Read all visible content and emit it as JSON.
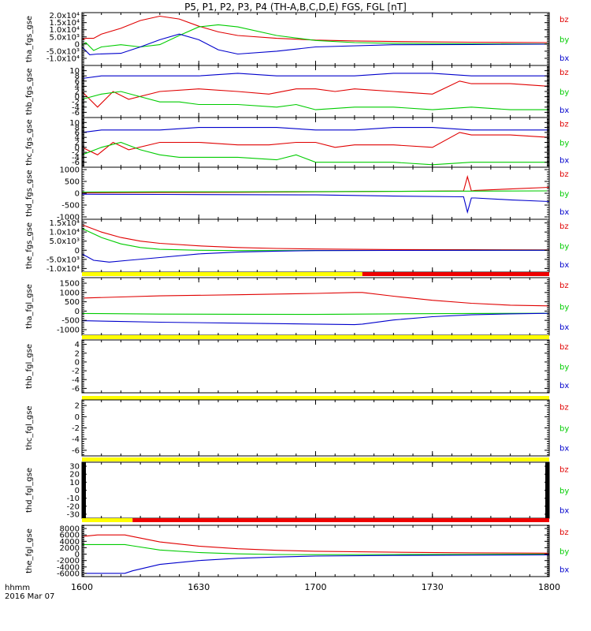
{
  "title": "P5, P1, P2, P3, P4 (TH-A,B,C,D,E) FGS, FGL [nT]",
  "footer": {
    "line1": "hhmm",
    "line2": "2016 Mar 07"
  },
  "colors": {
    "bz": "#e00000",
    "by": "#00cc00",
    "bx": "#0000cc",
    "bar_yellow": "#ffff00",
    "bar_red": "#ee0000",
    "fill_black": "#000000"
  },
  "chart_data": {
    "type": "line",
    "x_ticks": [
      "1600",
      "1630",
      "1700",
      "1730",
      "1800"
    ],
    "x_range": [
      0,
      120
    ],
    "legend": [
      "bz",
      "by",
      "bx"
    ],
    "panels": [
      {
        "id": "tha_fgs",
        "ylabel": "tha_fgs_gse",
        "ylim": [
          -15000,
          22000
        ],
        "tick_values": [
          20000,
          15000,
          10000,
          5000,
          0,
          -5000,
          -10000
        ],
        "tick_labels": [
          "2.0x10⁴",
          "1.5x10⁴",
          "1.0x10⁴",
          "5.0x10³",
          "0",
          "-5.0x10³",
          "-1.0x10⁴"
        ],
        "series": [
          {
            "name": "bz",
            "x": [
              0,
              1,
              3,
              5,
              10,
              15,
              20,
              25,
              30,
              35,
              40,
              50,
              60,
              70,
              80,
              100,
              120
            ],
            "y": [
              3000,
              4000,
              4000,
              7000,
              11000,
              16500,
              19500,
              17500,
              12500,
              8500,
              6000,
              4000,
              2800,
              2200,
              1800,
              1300,
              1000
            ]
          },
          {
            "name": "by",
            "x": [
              0,
              1,
              3,
              5,
              10,
              15,
              20,
              25,
              30,
              35,
              40,
              50,
              60,
              70,
              80,
              100,
              120
            ],
            "y": [
              -1000,
              1000,
              -4500,
              -2000,
              -500,
              -2000,
              -400,
              6000,
              12000,
              13500,
              12000,
              6000,
              2500,
              1000,
              500,
              200,
              0
            ]
          },
          {
            "name": "bx",
            "x": [
              0,
              2,
              4,
              10,
              15,
              20,
              25,
              30,
              35,
              40,
              50,
              60,
              80,
              100,
              120
            ],
            "y": [
              -2000,
              -7500,
              -7000,
              -6500,
              -2000,
              3000,
              7000,
              3000,
              -4000,
              -7000,
              -5000,
              -2000,
              -500,
              -300,
              -100
            ]
          }
        ]
      },
      {
        "id": "thb_fgs",
        "ylabel": "thb_fgs_gse",
        "ylim": [
          -8,
          12
        ],
        "tick_values": [
          10,
          8,
          6,
          4,
          2,
          0,
          -2,
          -4,
          -6
        ],
        "tick_labels": [
          "10",
          "8",
          "6",
          "4",
          "2",
          "0",
          "-2",
          "-4",
          "-6"
        ],
        "series": [
          {
            "name": "bz",
            "x": [
              0,
              4,
              8,
              12,
              20,
              30,
              40,
              48,
              55,
              60,
              65,
              70,
              80,
              90,
              97,
              100,
              110,
              120
            ],
            "y": [
              2,
              -4,
              2,
              -1,
              2,
              3,
              2,
              1,
              3,
              3,
              2,
              3,
              2,
              1,
              6,
              5,
              5,
              4
            ]
          },
          {
            "name": "by",
            "x": [
              0,
              5,
              10,
              15,
              20,
              25,
              30,
              40,
              50,
              55,
              60,
              70,
              80,
              90,
              100,
              110,
              120
            ],
            "y": [
              -1,
              1,
              2,
              0,
              -2,
              -2,
              -3,
              -3,
              -4,
              -3,
              -5,
              -4,
              -4,
              -5,
              -4,
              -5,
              -5
            ]
          },
          {
            "name": "bx",
            "x": [
              0,
              5,
              10,
              20,
              30,
              40,
              50,
              60,
              70,
              80,
              90,
              100,
              110,
              120
            ],
            "y": [
              7,
              8,
              8,
              8,
              8,
              9,
              8,
              8,
              8,
              9,
              9,
              8,
              8,
              8
            ]
          }
        ]
      },
      {
        "id": "thc_fgs",
        "ylabel": "thc_fgs_gse",
        "ylim": [
          -8,
          12
        ],
        "tick_values": [
          10,
          8,
          6,
          4,
          2,
          0,
          -2,
          -4,
          -6
        ],
        "tick_labels": [
          "10",
          "8",
          "6",
          "4",
          "2",
          "0",
          "-2",
          "-4",
          "-6"
        ],
        "series": [
          {
            "name": "bz",
            "x": [
              0,
              4,
              8,
              12,
              20,
              30,
              40,
              48,
              55,
              60,
              65,
              70,
              80,
              90,
              97,
              100,
              110,
              120
            ],
            "y": [
              0,
              -3,
              2,
              -1,
              2,
              2,
              1,
              1,
              2,
              2,
              0,
              1,
              1,
              0,
              6,
              5,
              5,
              4
            ]
          },
          {
            "name": "by",
            "x": [
              0,
              5,
              10,
              15,
              20,
              25,
              30,
              40,
              50,
              55,
              60,
              70,
              80,
              90,
              100,
              110,
              120
            ],
            "y": [
              -3,
              0,
              2,
              -1,
              -3,
              -4,
              -4,
              -4,
              -5,
              -3,
              -6,
              -6,
              -6,
              -7,
              -6,
              -6,
              -6
            ]
          },
          {
            "name": "bx",
            "x": [
              0,
              5,
              10,
              20,
              30,
              40,
              50,
              60,
              70,
              80,
              90,
              100,
              110,
              120
            ],
            "y": [
              6,
              7,
              7,
              7,
              8,
              8,
              8,
              7,
              7,
              8,
              8,
              7,
              7,
              7
            ]
          }
        ]
      },
      {
        "id": "thd_fgs",
        "ylabel": "thd_fgs_gse",
        "ylim": [
          -1100,
          1100
        ],
        "tick_values": [
          1000,
          500,
          0,
          -500,
          -1000
        ],
        "tick_labels": [
          "1000",
          "500",
          "0",
          "-500",
          "-1000"
        ],
        "series": [
          {
            "name": "bz",
            "x": [
              0,
              20,
              40,
              60,
              80,
              98,
              99,
              100,
              101,
              110,
              120
            ],
            "y": [
              20,
              30,
              40,
              60,
              80,
              100,
              700,
              100,
              120,
              180,
              250
            ]
          },
          {
            "name": "by",
            "x": [
              0,
              20,
              40,
              60,
              80,
              100,
              120
            ],
            "y": [
              50,
              60,
              60,
              70,
              80,
              90,
              100
            ]
          },
          {
            "name": "bx",
            "x": [
              0,
              20,
              40,
              60,
              80,
              98,
              99,
              100,
              101,
              110,
              120
            ],
            "y": [
              -40,
              -50,
              -60,
              -70,
              -120,
              -150,
              -800,
              -200,
              -200,
              -280,
              -350
            ]
          }
        ]
      },
      {
        "id": "the_fgs",
        "ylabel": "the_fgs_gse",
        "ylim": [
          -12000,
          17000
        ],
        "tick_values": [
          15000,
          10000,
          5000,
          0,
          -5000,
          -10000
        ],
        "tick_labels": [
          "1.5x10⁴",
          "1.0x10⁴",
          "5.0x10³",
          "0",
          "-5.0x10³",
          "-1.0x10⁴"
        ],
        "series": [
          {
            "name": "bz",
            "x": [
              0,
              5,
              10,
              15,
              20,
              30,
              40,
              50,
              60,
              80,
              100,
              120
            ],
            "y": [
              14000,
              10000,
              7000,
              5000,
              3800,
              2400,
              1500,
              1000,
              700,
              400,
              300,
              200
            ]
          },
          {
            "name": "by",
            "x": [
              0,
              5,
              10,
              15,
              20,
              30,
              40,
              50,
              60,
              80,
              120
            ],
            "y": [
              12000,
              7000,
              3500,
              1500,
              500,
              0,
              -200,
              -200,
              -150,
              -100,
              0
            ]
          },
          {
            "name": "bx",
            "x": [
              0,
              3,
              7,
              12,
              20,
              30,
              40,
              50,
              60,
              80,
              120
            ],
            "y": [
              -2000,
              -5500,
              -6500,
              -5500,
              -4000,
              -2000,
              -1000,
              -500,
              -200,
              -100,
              0
            ]
          }
        ]
      },
      {
        "id": "tha_fgl",
        "ylabel": "tha_fgl_gse",
        "ylim": [
          -1300,
          1800
        ],
        "tick_values": [
          1500,
          1000,
          500,
          0,
          -500,
          -1000
        ],
        "tick_labels": [
          "1500",
          "1000",
          "500",
          "0",
          "-500",
          "-1000"
        ],
        "status_bar": [
          {
            "from": 0,
            "to": 72,
            "color": "yellow"
          },
          {
            "from": 72,
            "to": 120,
            "color": "red"
          }
        ],
        "series": [
          {
            "name": "bz",
            "x": [
              0,
              10,
              20,
              40,
              60,
              70,
              72,
              80,
              90,
              100,
              110,
              120
            ],
            "y": [
              700,
              760,
              820,
              880,
              950,
              1000,
              1000,
              800,
              580,
              420,
              320,
              280
            ]
          },
          {
            "name": "by",
            "x": [
              0,
              20,
              40,
              60,
              72,
              80,
              100,
              120
            ],
            "y": [
              -130,
              -160,
              -170,
              -180,
              -160,
              -150,
              -130,
              -120
            ]
          },
          {
            "name": "bx",
            "x": [
              0,
              10,
              20,
              40,
              60,
              70,
              72,
              80,
              90,
              100,
              110,
              120
            ],
            "y": [
              -520,
              -560,
              -600,
              -650,
              -700,
              -730,
              -700,
              -480,
              -300,
              -200,
              -150,
              -120
            ]
          }
        ]
      },
      {
        "id": "thb_fgl",
        "ylabel": "thb_fgl_gse",
        "ylim": [
          -7,
          5
        ],
        "tick_values": [
          4,
          2,
          0,
          -2,
          -4,
          -6
        ],
        "tick_labels": [
          "4",
          "2",
          "0",
          "-2",
          "-4",
          "-6"
        ],
        "status_bar": [
          {
            "from": 0,
            "to": 120,
            "color": "yellow"
          }
        ],
        "series": []
      },
      {
        "id": "thc_fgl",
        "ylabel": "thc_fgl_gse",
        "ylim": [
          -7,
          3
        ],
        "tick_values": [
          2,
          0,
          -2,
          -4,
          -6
        ],
        "tick_labels": [
          "2",
          "0",
          "-2",
          "-4",
          "-6"
        ],
        "status_bar": [
          {
            "from": 0,
            "to": 120,
            "color": "yellow"
          }
        ],
        "series": []
      },
      {
        "id": "thd_fgl",
        "ylabel": "thd_fgl_gse",
        "ylim": [
          -35,
          35
        ],
        "tick_values": [
          30,
          20,
          10,
          0,
          -10,
          -20,
          -30
        ],
        "tick_labels": [
          "30",
          "20",
          "10",
          "0",
          "-10",
          "-20",
          "-30"
        ],
        "status_bar": [
          {
            "from": 0,
            "to": 120,
            "color": "yellow"
          }
        ],
        "black_edges": true,
        "series": []
      },
      {
        "id": "the_fgl",
        "ylabel": "the_fgl_gse",
        "ylim": [
          -7000,
          9000
        ],
        "tick_values": [
          8000,
          6000,
          4000,
          2000,
          0,
          -2000,
          -4000,
          -6000
        ],
        "tick_labels": [
          "8000",
          "6000",
          "4000",
          "2000",
          "0",
          "-2000",
          "-4000",
          "-6000"
        ],
        "status_bar": [
          {
            "from": 0,
            "to": 13,
            "color": "yellow"
          },
          {
            "from": 13,
            "to": 120,
            "color": "red"
          }
        ],
        "series": [
          {
            "name": "bz",
            "x": [
              0,
              4,
              11,
              13,
              20,
              30,
              40,
              50,
              60,
              80,
              100,
              120
            ],
            "y": [
              5500,
              6000,
              6000,
              5500,
              3800,
              2500,
              1700,
              1200,
              900,
              600,
              400,
              300
            ]
          },
          {
            "name": "by",
            "x": [
              0,
              4,
              11,
              13,
              20,
              30,
              40,
              50,
              60,
              80,
              100,
              120
            ],
            "y": [
              3000,
              3000,
              3000,
              2600,
              1300,
              500,
              100,
              -100,
              -150,
              -100,
              -50,
              0
            ]
          },
          {
            "name": "bx",
            "x": [
              0,
              4,
              11,
              13,
              20,
              30,
              40,
              50,
              60,
              80,
              100,
              120
            ],
            "y": [
              -6000,
              -6000,
              -6000,
              -5200,
              -3200,
              -2000,
              -1300,
              -900,
              -600,
              -400,
              -300,
              -200
            ]
          }
        ]
      }
    ]
  }
}
